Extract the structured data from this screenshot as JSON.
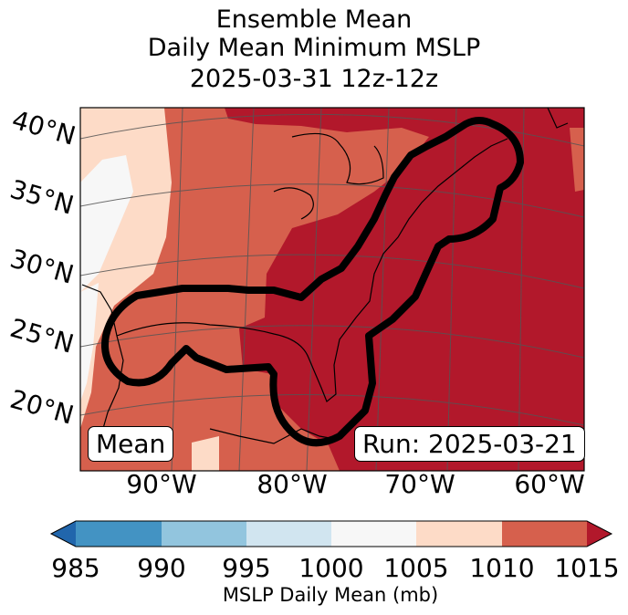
{
  "title": {
    "line1": "Ensemble Mean",
    "line2": "Daily Mean Minimum MSLP",
    "line3": "2025-03-31 12z-12z"
  },
  "lat_labels": [
    "40°N",
    "35°N",
    "30°N",
    "25°N",
    "20°N"
  ],
  "lon_labels": [
    "90°W",
    "80°W",
    "70°W",
    "60°W"
  ],
  "boxes": {
    "left": "Mean",
    "right": "Run: 2025-03-21"
  },
  "colorbar": {
    "ticks": [
      "985",
      "990",
      "995",
      "1000",
      "1005",
      "1010",
      "1015"
    ],
    "title": "MSLP Daily Mean (mb)",
    "colors": [
      "#2166ac",
      "#4393c3",
      "#92c5de",
      "#d1e5f0",
      "#f7f7f7",
      "#fddbc7",
      "#d6604d",
      "#b2182b"
    ]
  }
}
